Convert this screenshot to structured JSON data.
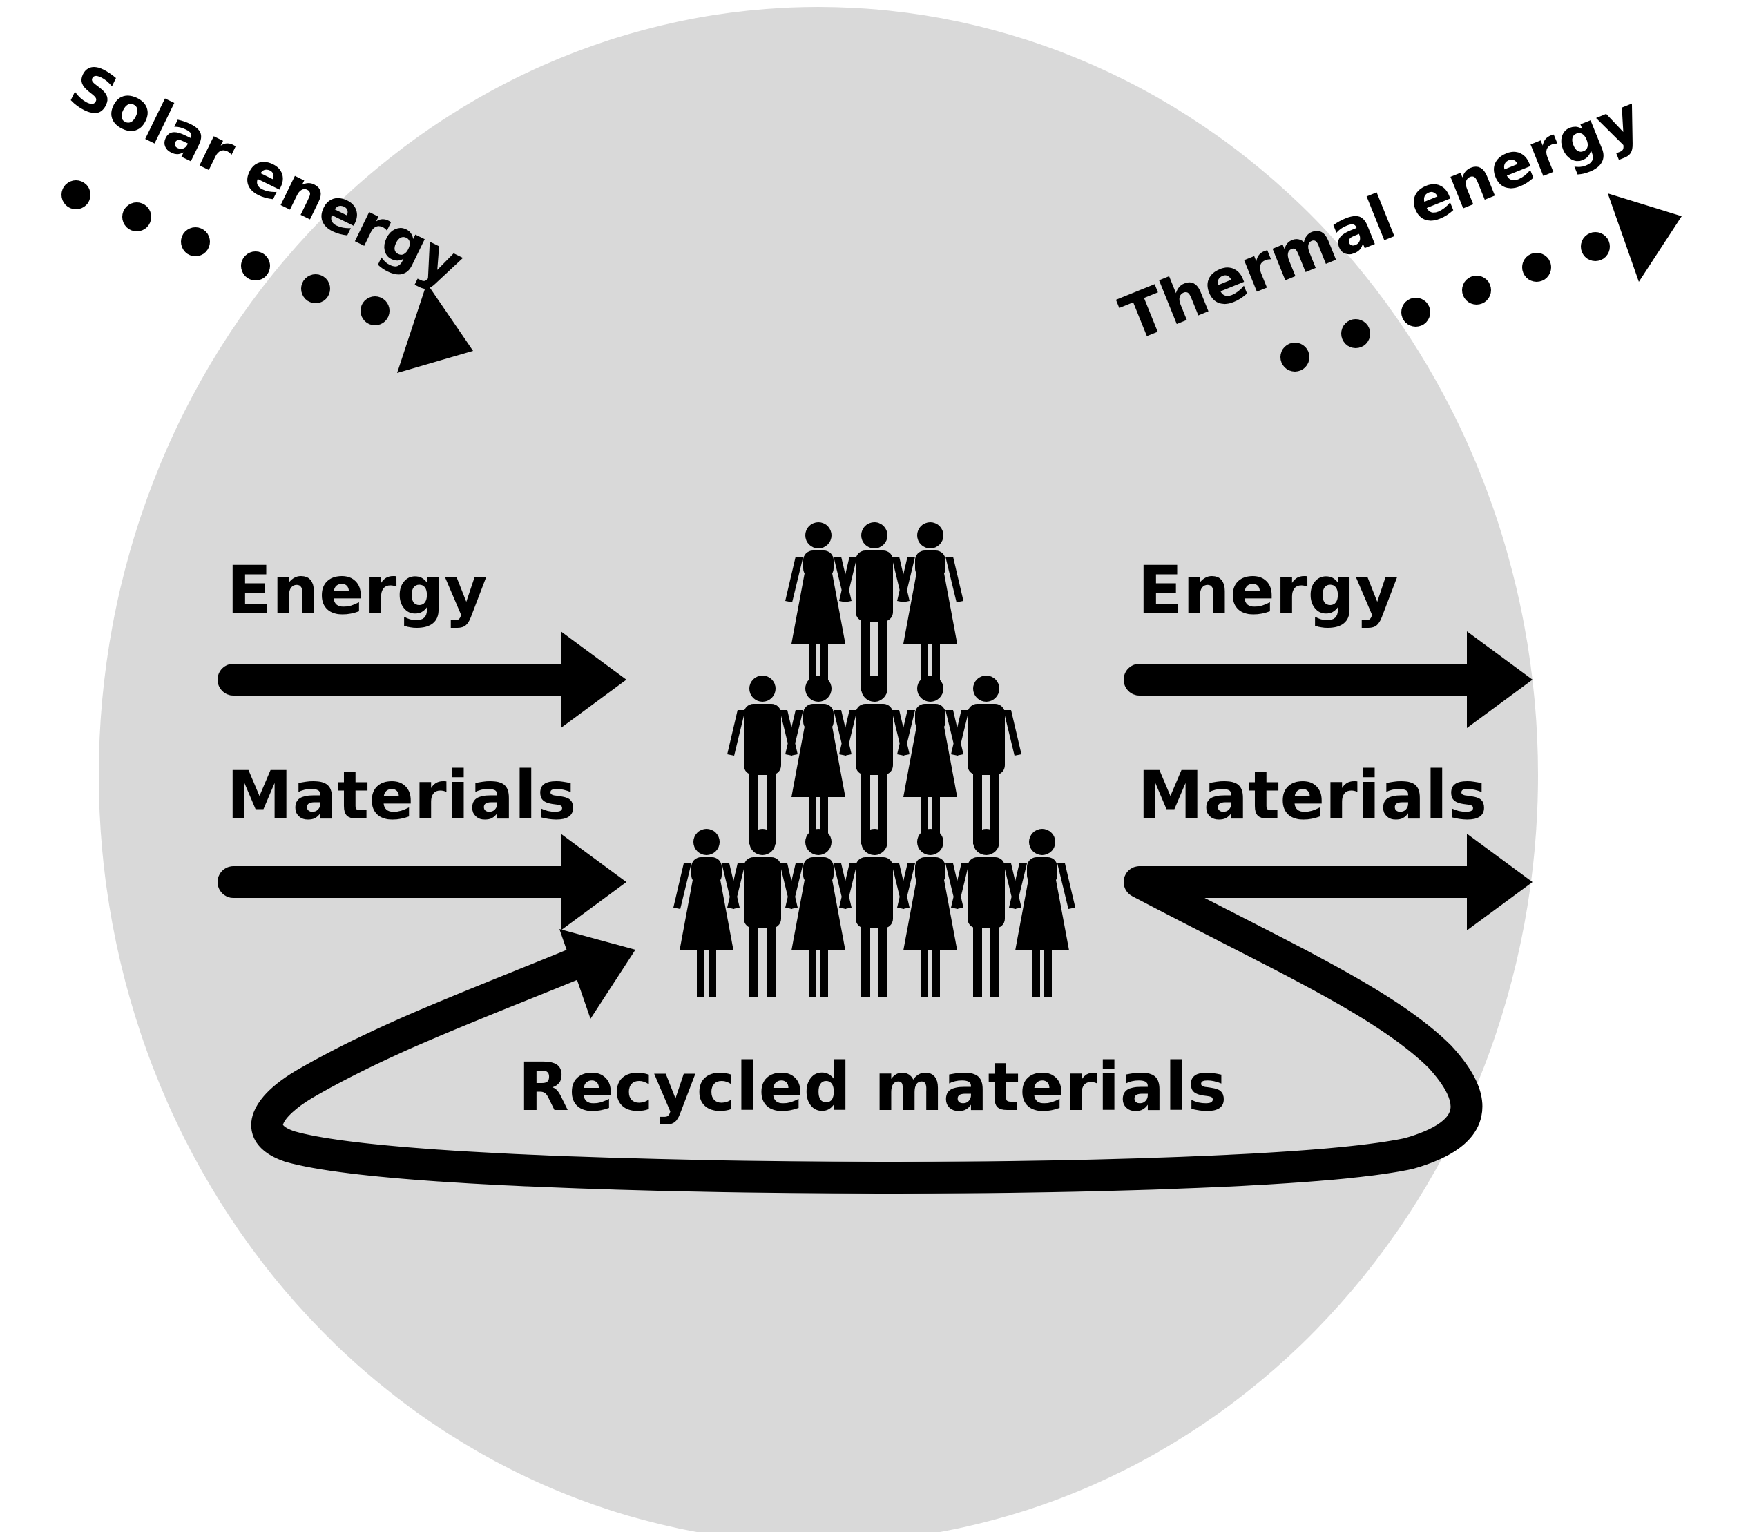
{
  "colors": {
    "background": "#ffffff",
    "system_circle": "#d9d9d9",
    "ink": "#000000"
  },
  "labels": {
    "solar_energy": "Solar energy",
    "thermal_energy": "Thermal energy",
    "energy_in": "Energy",
    "materials_in": "Materials",
    "energy_out": "Energy",
    "materials_out": "Materials",
    "recycled_materials": "Recycled materials"
  },
  "population": {
    "icon": "person-icon",
    "rows": [
      [
        "woman",
        "man",
        "woman"
      ],
      [
        "man",
        "woman",
        "man",
        "woman",
        "man"
      ],
      [
        "woman",
        "man",
        "woman",
        "man",
        "woman",
        "man",
        "woman"
      ]
    ]
  }
}
